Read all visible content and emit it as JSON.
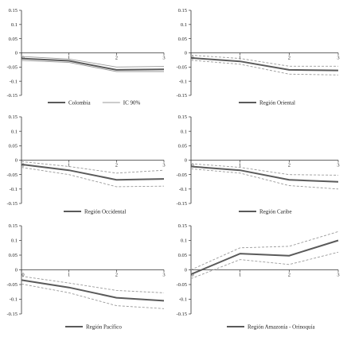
{
  "chart_data": [
    {
      "type": "line",
      "x": [
        0,
        1,
        2,
        3
      ],
      "ylim": [
        -0.15,
        0.15
      ],
      "yticks": [
        "0.15",
        "0.1",
        "0.05",
        "0",
        "-0.05",
        "-0.1",
        "-0.15"
      ],
      "xticks": [
        "0",
        "1",
        "2",
        "3"
      ],
      "series": [
        {
          "name": "Colombia",
          "values": [
            -0.02,
            -0.028,
            -0.06,
            -0.058
          ]
        },
        {
          "name": "IC 90%",
          "values": [
            -0.013,
            -0.022,
            -0.05,
            -0.048
          ]
        },
        {
          "name": "",
          "values": [
            -0.027,
            -0.034,
            -0.066,
            -0.066
          ]
        }
      ],
      "legend": [
        "Colombia",
        "IC 90%"
      ]
    },
    {
      "type": "line",
      "x": [
        0,
        1,
        2,
        3
      ],
      "ylim": [
        -0.15,
        0.15
      ],
      "yticks": [
        "0.15",
        "0.1",
        "0.05",
        "0",
        "-0.05",
        "-0.1",
        "-0.15"
      ],
      "xticks": [
        "0",
        "1",
        "2",
        "3"
      ],
      "series": [
        {
          "name": "Región Oriental",
          "values": [
            -0.018,
            -0.03,
            -0.06,
            -0.062
          ]
        },
        {
          "name": "",
          "values": [
            -0.008,
            -0.02,
            -0.047,
            -0.047
          ]
        },
        {
          "name": "",
          "values": [
            -0.026,
            -0.04,
            -0.075,
            -0.078
          ]
        }
      ],
      "legend": [
        "Región Oriental"
      ]
    },
    {
      "type": "line",
      "x": [
        0,
        1,
        2,
        3
      ],
      "ylim": [
        -0.15,
        0.15
      ],
      "yticks": [
        "0.15",
        "0.1",
        "0.05",
        "0",
        "-0.05",
        "-0.1",
        "-0.15"
      ],
      "xticks": [
        "0",
        "1",
        "2",
        "3"
      ],
      "series": [
        {
          "name": "Región Occidental",
          "values": [
            -0.015,
            -0.035,
            -0.068,
            -0.065
          ]
        },
        {
          "name": "",
          "values": [
            -0.005,
            -0.022,
            -0.045,
            -0.035
          ]
        },
        {
          "name": "",
          "values": [
            -0.025,
            -0.05,
            -0.092,
            -0.09
          ]
        }
      ],
      "legend": [
        "Región Occidental"
      ]
    },
    {
      "type": "line",
      "x": [
        0,
        1,
        2,
        3
      ],
      "ylim": [
        -0.15,
        0.15
      ],
      "yticks": [
        "0.15",
        "0.1",
        "0.05",
        "0",
        "-0.05",
        "-0.1",
        "-0.15"
      ],
      "xticks": [
        "0",
        "1",
        "2",
        "3"
      ],
      "series": [
        {
          "name": "Región Caribe",
          "values": [
            -0.022,
            -0.035,
            -0.068,
            -0.075
          ]
        },
        {
          "name": "",
          "values": [
            -0.012,
            -0.025,
            -0.05,
            -0.052
          ]
        },
        {
          "name": "",
          "values": [
            -0.03,
            -0.045,
            -0.088,
            -0.1
          ]
        }
      ],
      "legend": [
        "Región Caribe"
      ]
    },
    {
      "type": "line",
      "x": [
        0,
        1,
        2,
        3
      ],
      "ylim": [
        -0.15,
        0.15
      ],
      "yticks": [
        "0.15",
        "0.1",
        "0.05",
        "0",
        "-0.05",
        "-0.1",
        "-0.15"
      ],
      "xticks": [
        "0",
        "1",
        "2",
        "3"
      ],
      "series": [
        {
          "name": "Región Pacífico",
          "values": [
            -0.035,
            -0.06,
            -0.095,
            -0.105
          ]
        },
        {
          "name": "",
          "values": [
            -0.022,
            -0.045,
            -0.07,
            -0.078
          ]
        },
        {
          "name": "",
          "values": [
            -0.048,
            -0.078,
            -0.122,
            -0.132
          ]
        }
      ],
      "legend": [
        "Región Pacífico"
      ]
    },
    {
      "type": "line",
      "x": [
        0,
        1,
        2,
        3
      ],
      "ylim": [
        -0.15,
        0.15
      ],
      "yticks": [
        "0.15",
        "0.1",
        "0.05",
        "0",
        "-0.05",
        "-0.1",
        "-0.15"
      ],
      "xticks": [
        "0",
        "1",
        "2",
        "3"
      ],
      "series": [
        {
          "name": "Región Amazonía - Orinoquía",
          "values": [
            -0.015,
            0.055,
            0.048,
            0.1
          ]
        },
        {
          "name": "",
          "values": [
            0.0,
            0.075,
            0.08,
            0.13
          ]
        },
        {
          "name": "",
          "values": [
            -0.03,
            0.035,
            0.018,
            0.06
          ]
        }
      ],
      "legend": [
        "Región Amazonía - Orinoquía"
      ]
    }
  ]
}
